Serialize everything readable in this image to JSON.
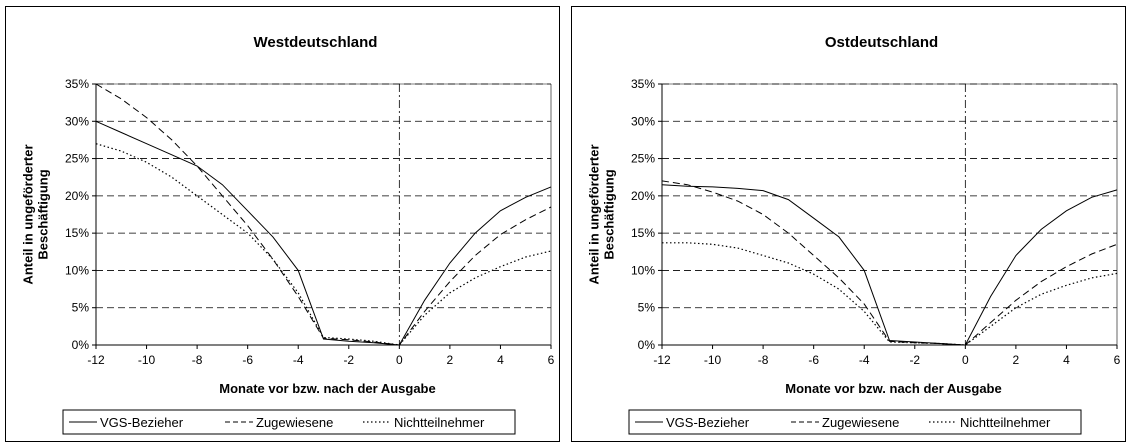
{
  "legend": [
    "VGS-Bezieher",
    "Zugewiesene",
    "Nichtteilnehmer"
  ],
  "chart_data": [
    {
      "type": "line",
      "title": "Westdeutschland",
      "xlabel": "Monate vor bzw. nach der Ausgabe",
      "ylabel": "Anteil in ungeförderter Beschäftigung",
      "xlim": [
        -12,
        6
      ],
      "ylim": [
        0,
        35
      ],
      "xticks": [
        "-12",
        "-10",
        "-8",
        "-6",
        "-4",
        "-2",
        "0",
        "2",
        "4",
        "6"
      ],
      "yticks": [
        "0%",
        "5%",
        "10%",
        "15%",
        "20%",
        "25%",
        "30%",
        "35%"
      ],
      "legend_position": "bottom",
      "series": [
        {
          "name": "VGS-Bezieher",
          "style": "solid",
          "x": [
            -12,
            -11,
            -10,
            -9,
            -8,
            -7,
            -6,
            -5,
            -4,
            -3,
            -2,
            -1,
            0,
            1,
            2,
            3,
            4,
            5,
            6
          ],
          "y": [
            30,
            28.5,
            27,
            25.5,
            24,
            21.5,
            18,
            14.5,
            10,
            0.8,
            0.5,
            0.3,
            0,
            6,
            11,
            15,
            18,
            19.8,
            21.2
          ]
        },
        {
          "name": "Zugewiesene",
          "style": "dashed",
          "x": [
            -12,
            -11,
            -10,
            -9,
            -8,
            -7,
            -6,
            -5,
            -4,
            -3,
            -2,
            -1,
            0,
            1,
            2,
            3,
            4,
            5,
            6
          ],
          "y": [
            35,
            33,
            30.5,
            27.5,
            24,
            20,
            16,
            11.5,
            6.5,
            0.9,
            0.7,
            0.4,
            0,
            4.5,
            8.5,
            12,
            14.8,
            16.8,
            18.5
          ]
        },
        {
          "name": "Nichtteilnehmer",
          "style": "dotted",
          "x": [
            -12,
            -11,
            -10,
            -9,
            -8,
            -7,
            -6,
            -5,
            -4,
            -3,
            -2,
            -1,
            0,
            1,
            2,
            3,
            4,
            5,
            6
          ],
          "y": [
            27,
            26,
            24.5,
            22.5,
            20,
            17.5,
            15,
            11.5,
            7,
            1,
            0.8,
            0.5,
            0,
            4,
            7,
            9,
            10.5,
            11.8,
            12.6
          ]
        }
      ]
    },
    {
      "type": "line",
      "title": "Ostdeutschland",
      "xlabel": "Monate vor bzw. nach der Ausgabe",
      "ylabel": "Anteil in ungeförderter Beschäftigung",
      "xlim": [
        -12,
        6
      ],
      "ylim": [
        0,
        35
      ],
      "xticks": [
        "-12",
        "-10",
        "-8",
        "-6",
        "-4",
        "-2",
        "0",
        "2",
        "4",
        "6"
      ],
      "yticks": [
        "0%",
        "5%",
        "10%",
        "15%",
        "20%",
        "25%",
        "30%",
        "35%"
      ],
      "legend_position": "bottom",
      "series": [
        {
          "name": "VGS-Bezieher",
          "style": "solid",
          "x": [
            -12,
            -11,
            -10,
            -9,
            -8,
            -7,
            -6,
            -5,
            -4,
            -3,
            -2,
            -1,
            0,
            1,
            2,
            3,
            4,
            5,
            6
          ],
          "y": [
            21.5,
            21.3,
            21.2,
            21,
            20.7,
            19.5,
            17,
            14.5,
            10,
            0.6,
            0.4,
            0.2,
            0,
            6.5,
            12,
            15.5,
            18,
            19.8,
            20.8
          ]
        },
        {
          "name": "Zugewiesene",
          "style": "dashed",
          "x": [
            -12,
            -11,
            -10,
            -9,
            -8,
            -7,
            -6,
            -5,
            -4,
            -3,
            -2,
            -1,
            0,
            1,
            2,
            3,
            4,
            5,
            6
          ],
          "y": [
            22,
            21.5,
            20.5,
            19.3,
            17.5,
            15,
            12,
            9,
            5.5,
            0.5,
            0.3,
            0.2,
            0,
            3,
            6,
            8.5,
            10.5,
            12.2,
            13.5
          ]
        },
        {
          "name": "Nichtteilnehmer",
          "style": "dotted",
          "x": [
            -12,
            -11,
            -10,
            -9,
            -8,
            -7,
            -6,
            -5,
            -4,
            -3,
            -2,
            -1,
            0,
            1,
            2,
            3,
            4,
            5,
            6
          ],
          "y": [
            13.7,
            13.7,
            13.5,
            13,
            12,
            11,
            9.5,
            7.5,
            4.5,
            0.4,
            0.3,
            0.2,
            0,
            2.5,
            5,
            6.8,
            8,
            9,
            9.6
          ]
        }
      ]
    }
  ]
}
